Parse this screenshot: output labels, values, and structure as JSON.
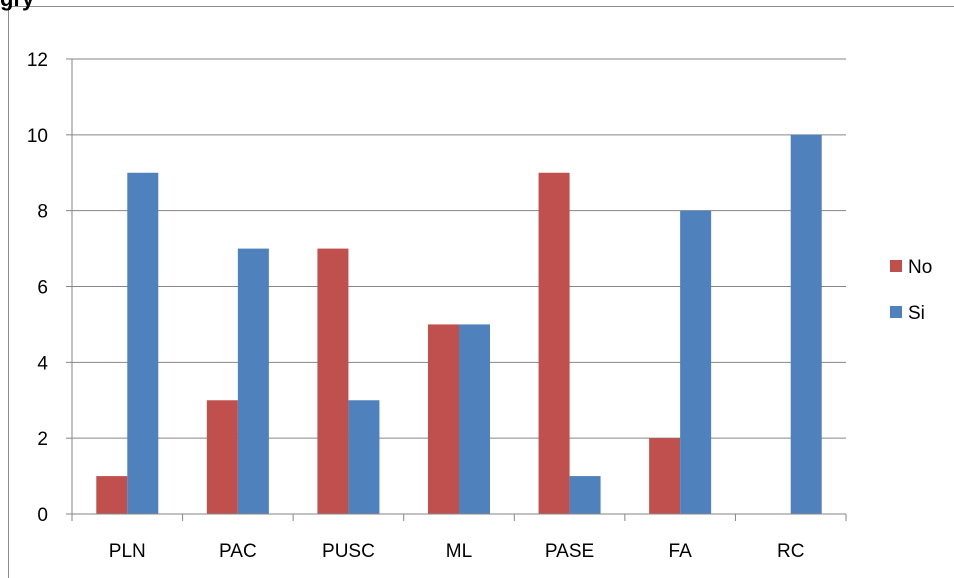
{
  "clipped_heading": "gry",
  "chart_data": {
    "type": "bar",
    "categories": [
      "PLN",
      "PAC",
      "PUSC",
      "ML",
      "PASE",
      "FA",
      "RC"
    ],
    "series": [
      {
        "name": "No",
        "values": [
          1,
          3,
          7,
          5,
          9,
          2,
          0
        ],
        "color": "#c0504d"
      },
      {
        "name": "Si",
        "values": [
          9,
          7,
          3,
          5,
          1,
          8,
          10
        ],
        "color": "#4f81bd"
      }
    ],
    "ylim": [
      0,
      12
    ],
    "yticks": [
      "0",
      "2",
      "4",
      "6",
      "8",
      "10",
      "12"
    ],
    "grid": true,
    "legend_placement": "right",
    "title": "",
    "xlabel": "",
    "ylabel": ""
  }
}
